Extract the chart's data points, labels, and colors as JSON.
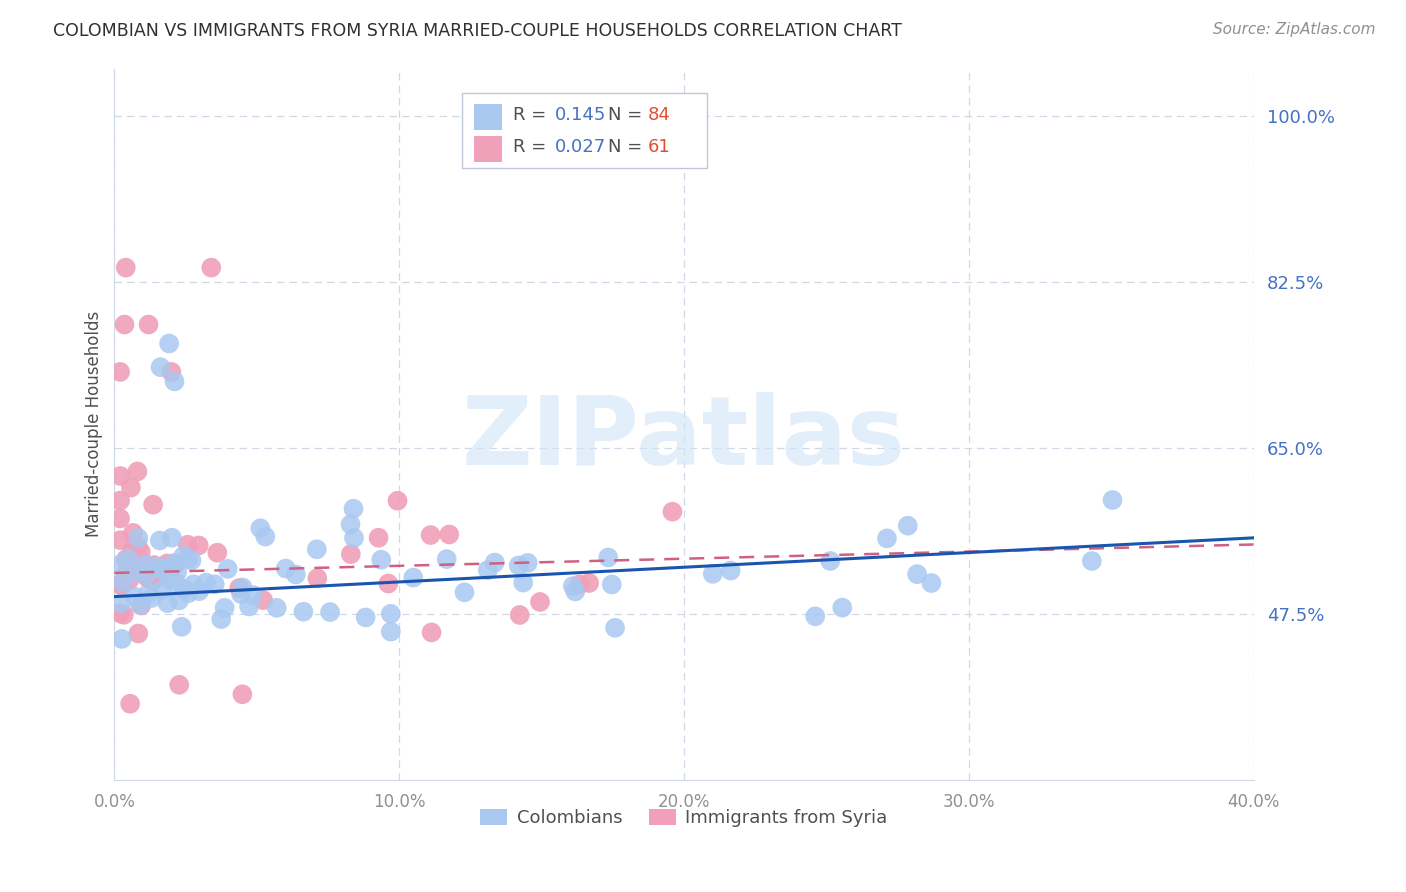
{
  "title": "COLOMBIAN VS IMMIGRANTS FROM SYRIA MARRIED-COUPLE HOUSEHOLDS CORRELATION CHART",
  "source": "Source: ZipAtlas.com",
  "ylabel": "Married-couple Households",
  "x_min": 0.0,
  "x_max": 0.4,
  "y_min": 0.3,
  "y_max": 1.05,
  "x_ticks": [
    0.0,
    0.1,
    0.2,
    0.3,
    0.4
  ],
  "x_ticklabels": [
    "0.0%",
    "10.0%",
    "20.0%",
    "30.0%",
    "40.0%"
  ],
  "right_y_ticks": [
    0.475,
    0.65,
    0.825,
    1.0
  ],
  "right_y_ticklabels": [
    "47.5%",
    "65.0%",
    "82.5%",
    "100.0%"
  ],
  "watermark": "ZIPatlas",
  "legend_r1": "R =",
  "legend_v1": "0.145",
  "legend_n1_label": "N =",
  "legend_n1": "84",
  "legend_r2": "R =",
  "legend_v2": "0.027",
  "legend_n2_label": "N =",
  "legend_n2": "61",
  "colombians_color": "#a8c8f0",
  "syria_color": "#f0a0b8",
  "regression_blue": "#1a56b0",
  "regression_pink": "#d06080",
  "background_color": "#ffffff",
  "grid_color": "#d0d8e8",
  "title_color": "#303030",
  "source_color": "#909090",
  "ylabel_color": "#505050",
  "tick_color": "#909090",
  "right_tick_color": "#4472c4",
  "legend_text_color": "#505050",
  "legend_value_color": "#4472c4",
  "legend_n_color": "#e05030"
}
